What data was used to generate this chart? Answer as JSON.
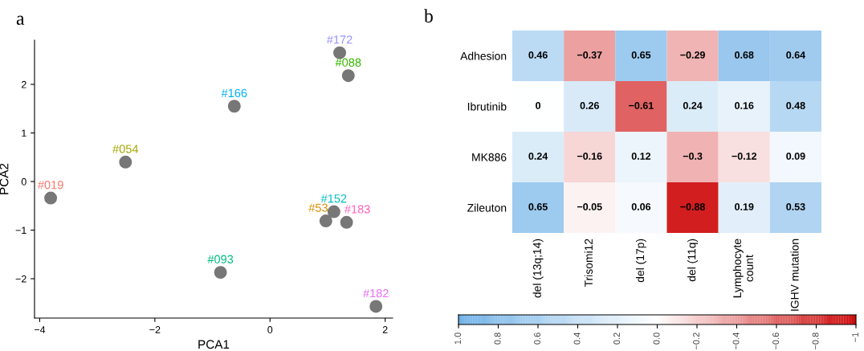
{
  "chart_data": [
    {
      "type": "scatter",
      "title": "a",
      "xlabel": "PCA1",
      "ylabel": "PCA2",
      "xlim": [
        -4.09,
        2.13
      ],
      "ylim": [
        -2.81,
        2.91
      ],
      "xticks": [
        {
          "value": -4,
          "label": "−4"
        },
        {
          "value": -2,
          "label": "−2"
        },
        0,
        2
      ],
      "yticks": [
        {
          "value": -2,
          "label": "−2"
        },
        {
          "value": -1,
          "label": "−1"
        },
        0,
        1,
        2
      ],
      "grid": false,
      "legend": false,
      "marker": "circle",
      "series": [
        {
          "color": "#777777",
          "x": [
            -3.81,
            0.97,
            -2.51,
            1.36,
            -0.86,
            1.11,
            -0.62,
            1.21,
            1.84,
            1.33
          ],
          "values": [
            -0.34,
            -0.81,
            0.4,
            2.18,
            -1.87,
            -0.62,
            1.55,
            2.65,
            -2.57,
            -0.84
          ]
        }
      ],
      "annotations": [
        {
          "text": "#019",
          "x": -3.81,
          "y": -0.34
        },
        {
          "text": "#53",
          "x": 0.97,
          "y": -0.81
        },
        {
          "text": "#054",
          "x": -2.51,
          "y": 0.4
        },
        {
          "text": "#088",
          "x": 1.36,
          "y": 2.18
        },
        {
          "text": "#093",
          "x": -0.86,
          "y": -1.87
        },
        {
          "text": "#152",
          "x": 1.11,
          "y": -0.62
        },
        {
          "text": "#166",
          "x": -0.62,
          "y": 1.55
        },
        {
          "text": "#172",
          "x": 1.21,
          "y": 2.65
        },
        {
          "text": "#182",
          "x": 1.84,
          "y": -2.57
        },
        {
          "text": "#183",
          "x": 1.33,
          "y": -0.84
        }
      ]
    },
    {
      "type": "heatmap",
      "title": "b",
      "categories": [
        "del (13q;14)",
        "Trisomi12",
        "del (17p)",
        "del (11q)",
        "Lymphocyte\ncount",
        "IGHV mutation"
      ],
      "y_categories": [
        "Adhesion",
        "Ibrutinib",
        "MK886",
        "Zileuton"
      ],
      "cells": [
        [
          0.46,
          -0.37,
          0.65,
          -0.29,
          0.68,
          0.64
        ],
        [
          0,
          0.26,
          -0.61,
          0.24,
          0.16,
          0.48
        ],
        [
          0.24,
          -0.16,
          0.12,
          -0.3,
          -0.12,
          0.09
        ],
        [
          0.65,
          -0.05,
          0.06,
          -0.88,
          0.19,
          0.53
        ]
      ],
      "cell_labels": [
        [
          "0.46",
          "−0.37",
          "0.65",
          "−0.29",
          "0.68",
          "0.64"
        ],
        [
          "0",
          "0.26",
          "−0.61",
          "0.24",
          "0.16",
          "0.48"
        ],
        [
          "0.24",
          "−0.16",
          "0.12",
          "−0.3",
          "−0.12",
          "0.09"
        ],
        [
          "0.65",
          "−0.05",
          "0.06",
          "−0.88",
          "0.19",
          "0.53"
        ]
      ],
      "clim": [
        1,
        -1
      ],
      "cticks": [
        {
          "value": 1,
          "label": "1.0"
        },
        {
          "value": 0.8,
          "label": "0.8"
        },
        {
          "value": 0.6,
          "label": "0.6"
        },
        {
          "value": 0.4,
          "label": "0.4"
        },
        {
          "value": 0.2,
          "label": "0.2"
        },
        {
          "value": 0,
          "label": "0.0"
        },
        {
          "value": -0.2,
          "label": "−0.2"
        },
        {
          "value": -0.4,
          "label": "−0.4"
        },
        {
          "value": -0.6,
          "label": "−0.6"
        },
        {
          "value": -0.8,
          "label": "−0.8"
        },
        {
          "value": -1,
          "label": "−1"
        }
      ]
    }
  ]
}
